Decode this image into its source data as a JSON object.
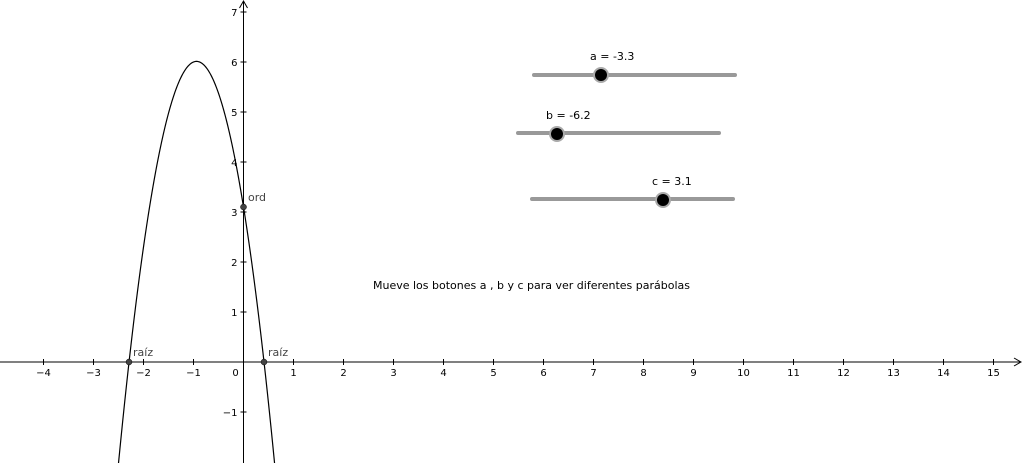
{
  "instruction_text": "Mueve los botones a , b y c para ver diferentes parábolas",
  "sliders": [
    {
      "name": "a",
      "caption": "a = -3.3",
      "value": -3.3,
      "min": -5,
      "max": 5
    },
    {
      "name": "b",
      "caption": "b = -6.2",
      "value": -6.2,
      "min": -10,
      "max": 10
    },
    {
      "name": "c",
      "caption": "c = 3.1",
      "value": 3.1,
      "min": -5,
      "max": 5
    }
  ],
  "axes": {
    "x_tick_labels": [
      "−4",
      "−3",
      "−2",
      "−1",
      "0",
      "1",
      "2",
      "3",
      "4",
      "5",
      "6",
      "7",
      "8",
      "9",
      "10",
      "11",
      "12",
      "13",
      "14",
      "15"
    ],
    "y_tick_labels": [
      "1",
      "2",
      "3",
      "4",
      "5",
      "6",
      "7",
      "−1"
    ]
  },
  "points": {
    "ordinate_label": "ord",
    "root_left_label": "raíz",
    "root_right_label": "raíz"
  },
  "function": {
    "a": -3.3,
    "b": -6.2,
    "c": 3.1
  },
  "colors": {
    "curve": "#000000",
    "axis": "#000000",
    "slider_track": "#999999",
    "slider_knob": "#000000",
    "point": "#444444"
  }
}
